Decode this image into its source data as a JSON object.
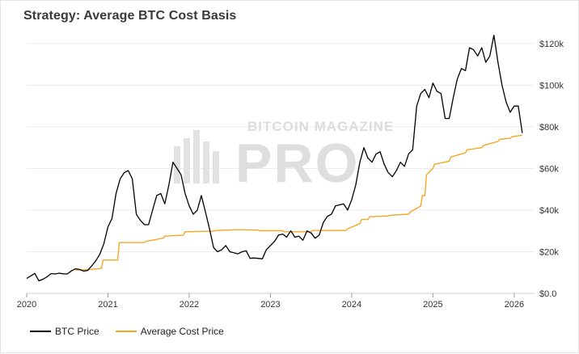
{
  "chart_data": {
    "type": "line",
    "title": "Strategy: Average BTC Cost Basis",
    "xlabel": "",
    "ylabel": "",
    "x_ticks": [
      "2020",
      "2021",
      "2022",
      "2023",
      "2024",
      "2025",
      "2026"
    ],
    "y_ticks": [
      "$0.0",
      "$20k",
      "$40k",
      "$60k",
      "$80k",
      "$100k",
      "$120k"
    ],
    "y_tick_values": [
      0,
      20000,
      40000,
      60000,
      80000,
      100000,
      120000
    ],
    "xlim": [
      2020.0,
      2026.25
    ],
    "ylim": [
      0,
      125000
    ],
    "grid": "horizontal",
    "legend_position": "bottom-left",
    "watermark": {
      "top": "BITCOIN MAGAZINE",
      "main": "PRO"
    },
    "series": [
      {
        "name": "BTC Price",
        "color": "#000000",
        "x": [
          2020.0,
          2020.05,
          2020.1,
          2020.15,
          2020.2,
          2020.25,
          2020.3,
          2020.35,
          2020.4,
          2020.45,
          2020.5,
          2020.55,
          2020.6,
          2020.65,
          2020.7,
          2020.75,
          2020.8,
          2020.85,
          2020.9,
          2020.95,
          2021.0,
          2021.05,
          2021.1,
          2021.15,
          2021.2,
          2021.25,
          2021.3,
          2021.35,
          2021.4,
          2021.45,
          2021.5,
          2021.55,
          2021.6,
          2021.65,
          2021.7,
          2021.75,
          2021.8,
          2021.85,
          2021.9,
          2021.95,
          2022.0,
          2022.05,
          2022.1,
          2022.15,
          2022.2,
          2022.25,
          2022.3,
          2022.35,
          2022.4,
          2022.45,
          2022.5,
          2022.55,
          2022.6,
          2022.65,
          2022.7,
          2022.75,
          2022.8,
          2022.85,
          2022.9,
          2022.95,
          2023.0,
          2023.05,
          2023.1,
          2023.15,
          2023.2,
          2023.25,
          2023.3,
          2023.35,
          2023.4,
          2023.45,
          2023.5,
          2023.55,
          2023.6,
          2023.65,
          2023.7,
          2023.75,
          2023.8,
          2023.85,
          2023.9,
          2023.95,
          2024.0,
          2024.05,
          2024.1,
          2024.15,
          2024.2,
          2024.25,
          2024.3,
          2024.35,
          2024.4,
          2024.45,
          2024.5,
          2024.55,
          2024.6,
          2024.65,
          2024.7,
          2024.75,
          2024.8,
          2024.85,
          2024.9,
          2024.95,
          2025.0,
          2025.05,
          2025.1,
          2025.15,
          2025.2,
          2025.25,
          2025.3,
          2025.35,
          2025.4,
          2025.45,
          2025.5,
          2025.55,
          2025.6,
          2025.65,
          2025.7,
          2025.75,
          2025.8,
          2025.85,
          2025.9,
          2025.95,
          2026.0,
          2026.05,
          2026.1
        ],
        "values": [
          7200,
          8400,
          9600,
          6000,
          6800,
          7900,
          9500,
          9300,
          9700,
          9400,
          9300,
          10800,
          11800,
          11500,
          10700,
          11000,
          13200,
          15600,
          18800,
          24000,
          32000,
          36000,
          48000,
          55000,
          58000,
          59000,
          55000,
          38000,
          35000,
          33000,
          33000,
          40000,
          47000,
          48000,
          43000,
          52000,
          63000,
          60000,
          57000,
          48000,
          42000,
          38000,
          40000,
          47000,
          39000,
          31000,
          22000,
          20000,
          21000,
          23000,
          20000,
          19500,
          19000,
          20000,
          20500,
          16800,
          17000,
          16800,
          16600,
          21000,
          23000,
          25000,
          28000,
          28500,
          27000,
          30000,
          27000,
          27500,
          25500,
          30000,
          29000,
          26500,
          28000,
          34000,
          37000,
          38000,
          42000,
          42500,
          43000,
          40000,
          45000,
          52000,
          63000,
          70000,
          65000,
          63000,
          67000,
          68000,
          62000,
          58000,
          56000,
          59000,
          63000,
          61000,
          67000,
          69000,
          90000,
          96000,
          98000,
          94000,
          101000,
          97000,
          96000,
          84000,
          84000,
          94000,
          103000,
          108000,
          107000,
          118000,
          117000,
          114000,
          118000,
          111000,
          114000,
          124000,
          111000,
          100000,
          92000,
          87000,
          90000,
          90000,
          77000
        ]
      },
      {
        "name": "Average Cost Price",
        "color": "#f5a623",
        "x": [
          2020.6,
          2020.62,
          2020.7,
          2020.72,
          2020.92,
          2020.94,
          2021.12,
          2021.14,
          2021.45,
          2021.47,
          2021.68,
          2021.7,
          2021.93,
          2021.95,
          2022.3,
          2022.32,
          2022.6,
          2022.62,
          2022.85,
          2022.87,
          2023.15,
          2023.17,
          2023.5,
          2023.52,
          2023.93,
          2023.95,
          2024.1,
          2024.12,
          2024.2,
          2024.22,
          2024.45,
          2024.47,
          2024.7,
          2024.72,
          2024.85,
          2024.87,
          2024.9,
          2024.92,
          2025.0,
          2025.02,
          2025.2,
          2025.22,
          2025.4,
          2025.42,
          2025.6,
          2025.62,
          2025.8,
          2025.82,
          2025.95,
          2025.97,
          2026.1
        ],
        "values": [
          11200,
          11200,
          11300,
          11300,
          12000,
          16000,
          16000,
          24400,
          24400,
          25000,
          26500,
          27500,
          28000,
          29600,
          29900,
          30200,
          30600,
          30600,
          30400,
          30100,
          30100,
          29600,
          29600,
          30200,
          30200,
          31000,
          33500,
          35500,
          35500,
          36800,
          37200,
          37500,
          38100,
          39000,
          42000,
          47000,
          47000,
          57000,
          60000,
          62000,
          63500,
          65500,
          67500,
          69000,
          70000,
          71000,
          73000,
          74000,
          74500,
          75200,
          76000
        ]
      }
    ]
  }
}
